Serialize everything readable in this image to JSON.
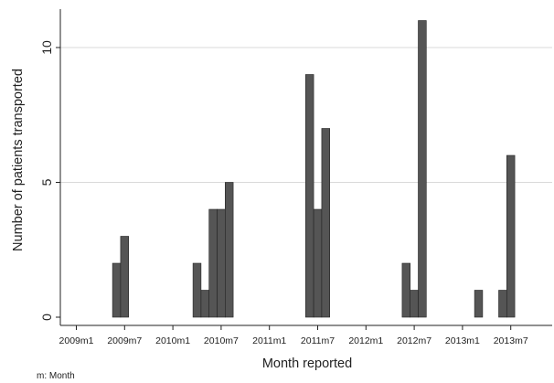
{
  "chart_data": {
    "type": "bar",
    "xlabel": "Month reported",
    "ylabel": "Number of patients transported",
    "note": "m: Month",
    "x_tick_labels": [
      "2009m1",
      "2009m7",
      "2010m1",
      "2010m7",
      "2011m1",
      "2011m7",
      "2012m1",
      "2012m7",
      "2013m1",
      "2013m7"
    ],
    "y_ticks": [
      0,
      5,
      10
    ],
    "ylim": [
      0,
      11.5
    ],
    "x_range": [
      "2008m10",
      "2013m12"
    ],
    "grid": "horizontal",
    "bar_color": "#555555",
    "bars": [
      {
        "month": "2009m6",
        "value": 2
      },
      {
        "month": "2009m7",
        "value": 3
      },
      {
        "month": "2010m4",
        "value": 2
      },
      {
        "month": "2010m5",
        "value": 1
      },
      {
        "month": "2010m6",
        "value": 4
      },
      {
        "month": "2010m7",
        "value": 4
      },
      {
        "month": "2010m8",
        "value": 5
      },
      {
        "month": "2011m6",
        "value": 9
      },
      {
        "month": "2011m7",
        "value": 4
      },
      {
        "month": "2011m8",
        "value": 7
      },
      {
        "month": "2012m6",
        "value": 2
      },
      {
        "month": "2012m7",
        "value": 1
      },
      {
        "month": "2012m8",
        "value": 11
      },
      {
        "month": "2013m3",
        "value": 1
      },
      {
        "month": "2013m6",
        "value": 1
      },
      {
        "month": "2013m7",
        "value": 6
      }
    ]
  }
}
